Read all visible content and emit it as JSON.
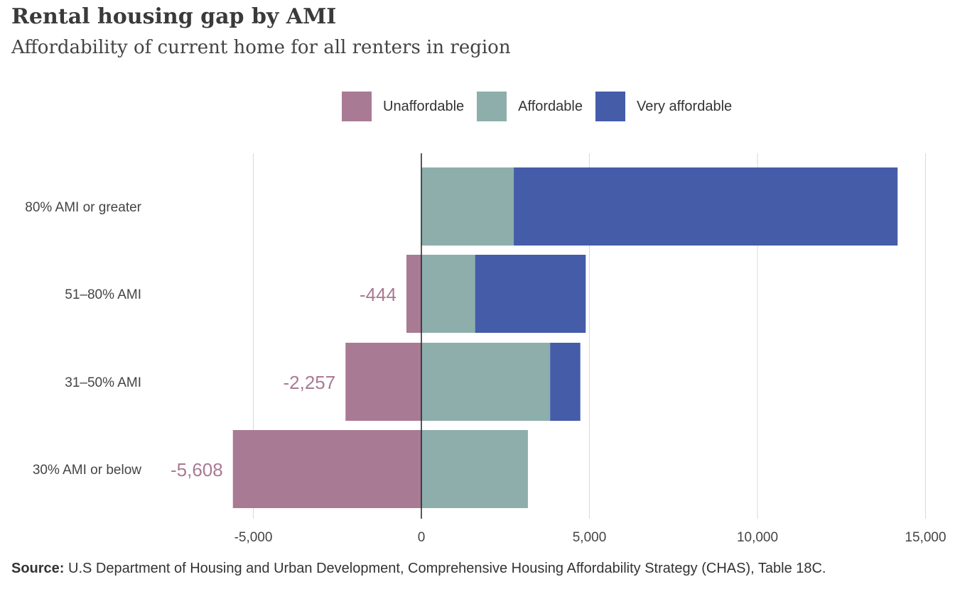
{
  "chart_data": {
    "type": "bar",
    "orientation": "horizontal",
    "stacked": true,
    "title": "Rental housing gap by AMI",
    "subtitle": "Affordability of current home for all renters in region",
    "categories": [
      "80% AMI or greater",
      "51–80% AMI",
      "31–50% AMI",
      "30% AMI or below"
    ],
    "series": [
      {
        "name": "Unaffordable",
        "color": "#a97a93",
        "values": [
          0,
          -444,
          -2257,
          -5608
        ]
      },
      {
        "name": "Affordable",
        "color": "#8daeab",
        "values": [
          2750,
          1600,
          3830,
          3170
        ]
      },
      {
        "name": "Very affordable",
        "color": "#455ca9",
        "values": [
          11420,
          3290,
          900,
          0
        ]
      }
    ],
    "data_labels": [
      {
        "category": "51–80% AMI",
        "text": "-444"
      },
      {
        "category": "31–50% AMI",
        "text": "-2,257"
      },
      {
        "category": "30% AMI or below",
        "text": "-5,608"
      }
    ],
    "xlim": [
      -5000,
      15000
    ],
    "xticks": [
      -5000,
      0,
      5000,
      10000,
      15000
    ],
    "xtick_labels": [
      "-5,000",
      "0",
      "5,000",
      "10,000",
      "15,000"
    ],
    "grid": true,
    "legend_position": "top-center",
    "xlabel": "",
    "ylabel": ""
  },
  "source_label": "Source:",
  "source_text": " U.S Department  of Housing and Urban Development,  Comprehensive Housing  Affordability Strategy (CHAS), Table 18C."
}
